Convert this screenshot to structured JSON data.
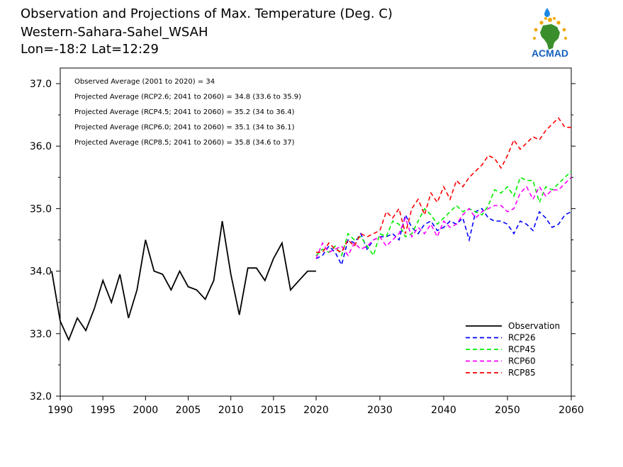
{
  "header": {
    "title": "Observation and Projections of Max. Temperature (Deg. C)",
    "region": "Western-Sahara-Sahel_WSAH",
    "coords": "Lon=-18:2   Lat=12:29"
  },
  "logo": {
    "text": "ACMAD"
  },
  "annotations": [
    "Observed Average (2001 to 2020) = 34",
    "Projected Average (RCP2.6; 2041 to 2060) = 34.8 (33.6 to 35.9)",
    "Projected Average (RCP4.5; 2041 to 2060) = 35.2 (34 to 36.4)",
    "Projected Average (RCP6.0; 2041 to 2060) = 35.1 (34 to 36.1)",
    "Projected Average (RCP8.5; 2041 to 2060) = 35.8 (34.6 to 37)"
  ],
  "chart_data": {
    "type": "line",
    "xlim": [
      1989,
      2060
    ],
    "ylim": [
      32.0,
      37.2
    ],
    "x_ticks": [
      1990,
      1995,
      2000,
      2005,
      2010,
      2015,
      2020,
      2030,
      2040,
      2050,
      2060
    ],
    "y_ticks": [
      32.0,
      33.0,
      34.0,
      35.0,
      36.0,
      37.0
    ],
    "grid": false,
    "legend_position": "bottom-right",
    "series": [
      {
        "name": "Observation",
        "color": "#000000",
        "dashed": false,
        "x": [
          1989,
          1990,
          1991,
          1992,
          1993,
          1994,
          1995,
          1996,
          1997,
          1998,
          1999,
          2000,
          2001,
          2002,
          2003,
          2004,
          2005,
          2006,
          2007,
          2008,
          2009,
          2010,
          2011,
          2012,
          2013,
          2014,
          2015,
          2016,
          2017,
          2018,
          2019,
          2020
        ],
        "y": [
          34.0,
          33.2,
          32.9,
          33.25,
          33.05,
          33.4,
          33.85,
          33.5,
          33.95,
          33.25,
          33.7,
          34.5,
          34.0,
          33.95,
          33.7,
          34.0,
          33.75,
          33.7,
          33.55,
          33.85,
          34.8,
          33.95,
          33.3,
          34.05,
          34.05,
          33.85,
          34.2,
          34.45,
          33.7,
          33.85,
          34.0,
          34.0
        ]
      },
      {
        "name": "RCP26",
        "color": "#0000ff",
        "dashed": true,
        "x": [
          2020,
          2021,
          2022,
          2023,
          2024,
          2025,
          2026,
          2027,
          2028,
          2029,
          2030,
          2031,
          2032,
          2033,
          2034,
          2035,
          2036,
          2037,
          2038,
          2039,
          2040,
          2041,
          2042,
          2043,
          2044,
          2045,
          2046,
          2047,
          2048,
          2049,
          2050,
          2051,
          2052,
          2053,
          2054,
          2055,
          2056,
          2057,
          2058,
          2059,
          2060
        ],
        "y": [
          34.2,
          34.25,
          34.4,
          34.3,
          34.1,
          34.5,
          34.45,
          34.6,
          34.35,
          34.5,
          34.55,
          34.55,
          34.6,
          34.5,
          34.9,
          34.7,
          34.6,
          34.75,
          34.8,
          34.65,
          34.7,
          34.8,
          34.75,
          34.85,
          34.5,
          34.95,
          35.0,
          34.85,
          34.8,
          34.8,
          34.75,
          34.6,
          34.8,
          34.75,
          34.65,
          34.95,
          34.85,
          34.7,
          34.75,
          34.9,
          34.95
        ]
      },
      {
        "name": "RCP45",
        "color": "#00ee00",
        "dashed": true,
        "x": [
          2020,
          2021,
          2022,
          2023,
          2024,
          2025,
          2026,
          2027,
          2028,
          2029,
          2030,
          2031,
          2032,
          2033,
          2034,
          2035,
          2036,
          2037,
          2038,
          2039,
          2040,
          2041,
          2042,
          2043,
          2044,
          2045,
          2046,
          2047,
          2048,
          2049,
          2050,
          2051,
          2052,
          2053,
          2054,
          2055,
          2056,
          2057,
          2058,
          2059,
          2060
        ],
        "y": [
          34.25,
          34.35,
          34.3,
          34.4,
          34.25,
          34.6,
          34.5,
          34.55,
          34.4,
          34.25,
          34.6,
          34.55,
          34.8,
          34.75,
          34.55,
          34.6,
          34.8,
          35.0,
          34.9,
          34.75,
          34.85,
          34.95,
          35.05,
          34.95,
          35.0,
          34.95,
          34.9,
          35.05,
          35.3,
          35.25,
          35.35,
          35.2,
          35.5,
          35.45,
          35.45,
          35.1,
          35.35,
          35.3,
          35.4,
          35.5,
          35.6
        ]
      },
      {
        "name": "RCP60",
        "color": "#ff00ff",
        "dashed": true,
        "x": [
          2020,
          2021,
          2022,
          2023,
          2024,
          2025,
          2026,
          2027,
          2028,
          2029,
          2030,
          2031,
          2032,
          2033,
          2034,
          2035,
          2036,
          2037,
          2038,
          2039,
          2040,
          2041,
          2042,
          2043,
          2044,
          2045,
          2046,
          2047,
          2048,
          2049,
          2050,
          2051,
          2052,
          2053,
          2054,
          2055,
          2056,
          2057,
          2058,
          2059,
          2060
        ],
        "y": [
          34.2,
          34.45,
          34.3,
          34.35,
          34.4,
          34.25,
          34.45,
          34.35,
          34.4,
          34.5,
          34.55,
          34.4,
          34.5,
          34.6,
          34.85,
          34.55,
          34.7,
          34.6,
          34.75,
          34.55,
          34.8,
          34.7,
          34.75,
          34.9,
          35.0,
          34.85,
          34.95,
          35.0,
          35.05,
          35.05,
          34.95,
          35.0,
          35.25,
          35.35,
          35.15,
          35.35,
          35.2,
          35.3,
          35.3,
          35.4,
          35.5
        ]
      },
      {
        "name": "RCP85",
        "color": "#ff0000",
        "dashed": true,
        "x": [
          2020,
          2021,
          2022,
          2023,
          2024,
          2025,
          2026,
          2027,
          2028,
          2029,
          2030,
          2031,
          2032,
          2033,
          2034,
          2035,
          2036,
          2037,
          2038,
          2039,
          2040,
          2041,
          2042,
          2043,
          2044,
          2045,
          2046,
          2047,
          2048,
          2049,
          2050,
          2051,
          2052,
          2053,
          2054,
          2055,
          2056,
          2057,
          2058,
          2059,
          2060
        ],
        "y": [
          34.3,
          34.3,
          34.45,
          34.35,
          34.3,
          34.5,
          34.4,
          34.6,
          34.55,
          34.6,
          34.65,
          34.95,
          34.85,
          35.0,
          34.6,
          35.0,
          35.15,
          34.9,
          35.25,
          35.1,
          35.35,
          35.15,
          35.45,
          35.35,
          35.5,
          35.6,
          35.7,
          35.85,
          35.8,
          35.65,
          35.85,
          36.1,
          35.95,
          36.05,
          36.15,
          36.1,
          36.25,
          36.35,
          36.45,
          36.3,
          36.3
        ]
      }
    ]
  }
}
